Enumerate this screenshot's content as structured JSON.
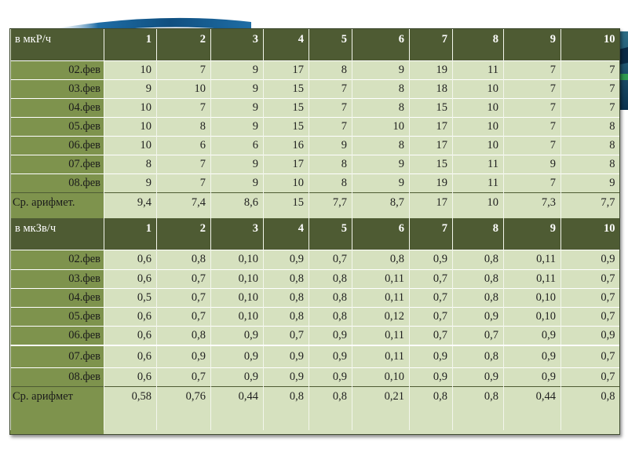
{
  "colors": {
    "header_bg": "#4e5b33",
    "label_col_bg": "#7e934d",
    "cell_bg": "#d6e1bf",
    "slide_stripe": "#1f6da5"
  },
  "table1": {
    "unit_label": "в мкР/ч",
    "headers": [
      "1",
      "2",
      "3",
      "4",
      "5",
      "6",
      "7",
      "8",
      "9",
      "10"
    ],
    "rows": [
      {
        "date": "02.фев",
        "values": [
          "10",
          "7",
          "9",
          "17",
          "8",
          "9",
          "19",
          "11",
          "7",
          "7"
        ]
      },
      {
        "date": "03.фев",
        "values": [
          "9",
          "10",
          "9",
          "15",
          "7",
          "8",
          "18",
          "10",
          "7",
          "7"
        ]
      },
      {
        "date": "04.фев",
        "values": [
          "10",
          "7",
          "9",
          "15",
          "7",
          "8",
          "15",
          "10",
          "7",
          "7"
        ]
      },
      {
        "date": "05.фев",
        "values": [
          "10",
          "8",
          "9",
          "15",
          "7",
          "10",
          "17",
          "10",
          "7",
          "8"
        ]
      },
      {
        "date": "06.фев",
        "values": [
          "10",
          "6",
          "6",
          "16",
          "9",
          "8",
          "17",
          "10",
          "7",
          "8"
        ]
      },
      {
        "date": "07.фев",
        "values": [
          "8",
          "7",
          "9",
          "17",
          "8",
          "9",
          "15",
          "11",
          "9",
          "8"
        ]
      },
      {
        "date": "08.фев",
        "values": [
          "9",
          "7",
          "9",
          "10",
          "8",
          "9",
          "19",
          "11",
          "7",
          "9"
        ]
      }
    ],
    "avg": {
      "label": "Ср. арифмет.",
      "values": [
        "9,4",
        "7,4",
        "8,6",
        "15",
        "7,7",
        "8,7",
        "17",
        "10",
        "7,3",
        "7,7"
      ]
    }
  },
  "table2": {
    "unit_label": "в мкЗв/ч",
    "headers": [
      "1",
      "2",
      "3",
      "4",
      "5",
      "6",
      "7",
      "8",
      "9",
      "10"
    ],
    "rows": [
      {
        "date": "02.фев",
        "values": [
          "0,6",
          "0,8",
          "0,10",
          "0,9",
          "0,7",
          "0,8",
          "0,9",
          "0,8",
          "0,11",
          "0,9"
        ]
      },
      {
        "date": "03.фев",
        "values": [
          "0,6",
          "0,7",
          "0,10",
          "0,8",
          "0,8",
          "0,11",
          "0,7",
          "0,8",
          "0,11",
          "0,7"
        ]
      },
      {
        "date": "04.фев",
        "values": [
          "0,5",
          "0,7",
          "0,10",
          "0,8",
          "0,8",
          "0,11",
          "0,7",
          "0,8",
          "0,10",
          "0,7"
        ]
      },
      {
        "date": "05.фев",
        "values": [
          "0,6",
          "0,7",
          "0,10",
          "0,8",
          "0,8",
          "0,12",
          "0,7",
          "0,9",
          "0,10",
          "0,7"
        ]
      },
      {
        "date": "06.фев",
        "values": [
          "0,6",
          "0,8",
          "0,9",
          "0,7",
          "0,9",
          "0,11",
          "0,7",
          "0,7",
          "0,9",
          "0,9"
        ]
      },
      {
        "date": "07.фев",
        "values": [
          "0,6",
          "0,9",
          "0,9",
          "0,9",
          "0,9",
          "0,11",
          "0,9",
          "0,8",
          "0,9",
          "0,7"
        ]
      },
      {
        "date": "08.фев",
        "values": [
          "0,6",
          "0,7",
          "0,9",
          "0,9",
          "0,9",
          "0,10",
          "0,9",
          "0,9",
          "0,9",
          "0,7"
        ]
      }
    ],
    "avg": {
      "label": "Ср. арифмет",
      "values": [
        "0,58",
        "0,76",
        "0,44",
        "0,8",
        "0,8",
        "0,21",
        "0,8",
        "0,8",
        "0,44",
        "0,8"
      ]
    }
  }
}
